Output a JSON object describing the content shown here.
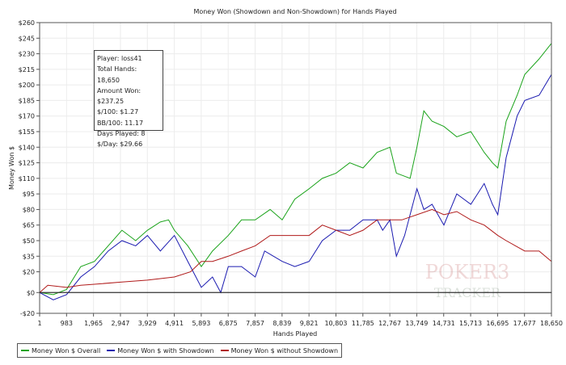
{
  "chart_data": {
    "type": "line",
    "title": "Money Won (Showdown and Non-Showdown) for Hands Played",
    "xlabel": "Hands Played",
    "ylabel": "Money Won $",
    "xlim": [
      1,
      18650
    ],
    "ylim": [
      -20,
      260
    ],
    "x_ticks": [
      "1",
      "983",
      "1,965",
      "2,947",
      "3,929",
      "4,911",
      "5,893",
      "6,875",
      "7,857",
      "8,839",
      "9,821",
      "10,803",
      "11,785",
      "12,767",
      "13,749",
      "14,731",
      "15,713",
      "16,695",
      "17,677",
      "18,650"
    ],
    "y_ticks": [
      {
        "v": -20,
        "label": "-$20"
      },
      {
        "v": 0,
        "label": "$0"
      },
      {
        "v": 20,
        "label": "$20"
      },
      {
        "v": 35,
        "label": "$35"
      },
      {
        "v": 50,
        "label": "$50"
      },
      {
        "v": 65,
        "label": "$65"
      },
      {
        "v": 80,
        "label": "$80"
      },
      {
        "v": 95,
        "label": "$95"
      },
      {
        "v": 110,
        "label": "$110"
      },
      {
        "v": 125,
        "label": "$125"
      },
      {
        "v": 140,
        "label": "$140"
      },
      {
        "v": 155,
        "label": "$155"
      },
      {
        "v": 170,
        "label": "$170"
      },
      {
        "v": 185,
        "label": "$185"
      },
      {
        "v": 200,
        "label": "$200"
      },
      {
        "v": 215,
        "label": "$215"
      },
      {
        "v": 230,
        "label": "$230"
      },
      {
        "v": 245,
        "label": "$245"
      },
      {
        "v": 260,
        "label": "$260"
      }
    ],
    "grid": true,
    "legend_position": "bottom-left",
    "series": [
      {
        "name": "Money Won $ Overall",
        "color": "#1aa31a",
        "points": [
          [
            1,
            0
          ],
          [
            500,
            -2
          ],
          [
            983,
            3
          ],
          [
            1500,
            25
          ],
          [
            2000,
            30
          ],
          [
            2500,
            45
          ],
          [
            3000,
            60
          ],
          [
            3500,
            50
          ],
          [
            3929,
            60
          ],
          [
            4400,
            68
          ],
          [
            4700,
            70
          ],
          [
            4911,
            60
          ],
          [
            5400,
            45
          ],
          [
            5893,
            25
          ],
          [
            6300,
            40
          ],
          [
            6875,
            55
          ],
          [
            7357,
            70
          ],
          [
            7857,
            70
          ],
          [
            8400,
            80
          ],
          [
            8839,
            70
          ],
          [
            9300,
            90
          ],
          [
            9821,
            100
          ],
          [
            10300,
            110
          ],
          [
            10803,
            115
          ],
          [
            11300,
            125
          ],
          [
            11785,
            120
          ],
          [
            12300,
            135
          ],
          [
            12767,
            140
          ],
          [
            13000,
            115
          ],
          [
            13500,
            110
          ],
          [
            13749,
            140
          ],
          [
            14000,
            175
          ],
          [
            14300,
            165
          ],
          [
            14731,
            160
          ],
          [
            15200,
            150
          ],
          [
            15713,
            155
          ],
          [
            16200,
            135
          ],
          [
            16500,
            125
          ],
          [
            16695,
            120
          ],
          [
            17000,
            165
          ],
          [
            17400,
            190
          ],
          [
            17677,
            210
          ],
          [
            18200,
            225
          ],
          [
            18650,
            240
          ]
        ]
      },
      {
        "name": "Money Won $ with Showdown",
        "color": "#1a1ab0",
        "points": [
          [
            1,
            0
          ],
          [
            500,
            -7
          ],
          [
            983,
            -2
          ],
          [
            1500,
            15
          ],
          [
            2000,
            25
          ],
          [
            2500,
            40
          ],
          [
            3000,
            50
          ],
          [
            3500,
            45
          ],
          [
            3929,
            55
          ],
          [
            4400,
            40
          ],
          [
            4911,
            55
          ],
          [
            5400,
            30
          ],
          [
            5893,
            5
          ],
          [
            6300,
            15
          ],
          [
            6600,
            0
          ],
          [
            6875,
            25
          ],
          [
            7357,
            25
          ],
          [
            7857,
            15
          ],
          [
            8200,
            40
          ],
          [
            8839,
            30
          ],
          [
            9300,
            25
          ],
          [
            9821,
            30
          ],
          [
            10300,
            50
          ],
          [
            10803,
            60
          ],
          [
            11300,
            60
          ],
          [
            11785,
            70
          ],
          [
            12300,
            70
          ],
          [
            12500,
            60
          ],
          [
            12767,
            70
          ],
          [
            13000,
            35
          ],
          [
            13300,
            55
          ],
          [
            13749,
            100
          ],
          [
            14000,
            80
          ],
          [
            14300,
            85
          ],
          [
            14731,
            65
          ],
          [
            15200,
            95
          ],
          [
            15713,
            85
          ],
          [
            16200,
            105
          ],
          [
            16500,
            85
          ],
          [
            16695,
            75
          ],
          [
            17000,
            130
          ],
          [
            17400,
            170
          ],
          [
            17677,
            185
          ],
          [
            18200,
            190
          ],
          [
            18650,
            210
          ]
        ]
      },
      {
        "name": "Money Won $ without Showdown",
        "color": "#b01a1a",
        "points": [
          [
            1,
            0
          ],
          [
            300,
            7
          ],
          [
            983,
            5
          ],
          [
            1500,
            7
          ],
          [
            2000,
            8
          ],
          [
            2947,
            10
          ],
          [
            3929,
            12
          ],
          [
            4911,
            15
          ],
          [
            5500,
            20
          ],
          [
            5893,
            30
          ],
          [
            6300,
            30
          ],
          [
            6875,
            35
          ],
          [
            7357,
            40
          ],
          [
            7857,
            45
          ],
          [
            8400,
            55
          ],
          [
            8839,
            55
          ],
          [
            9821,
            55
          ],
          [
            10300,
            65
          ],
          [
            10803,
            60
          ],
          [
            11300,
            55
          ],
          [
            11785,
            60
          ],
          [
            12300,
            70
          ],
          [
            12767,
            70
          ],
          [
            13200,
            70
          ],
          [
            13749,
            75
          ],
          [
            14300,
            80
          ],
          [
            14731,
            75
          ],
          [
            15200,
            78
          ],
          [
            15713,
            70
          ],
          [
            16200,
            65
          ],
          [
            16695,
            55
          ],
          [
            17000,
            50
          ],
          [
            17677,
            40
          ],
          [
            18200,
            40
          ],
          [
            18650,
            30
          ]
        ]
      }
    ]
  },
  "info_box": {
    "player": "Player: loss41",
    "total_hands": "Total Hands: 18,650",
    "amount_won": "Amount Won: $237.25",
    "per100": "$/100: $1.27",
    "bb100": "BB/100: 11.17",
    "days": "Days Played: 8",
    "per_day": "$/Day: $29.66"
  },
  "watermark": "POKER TRACKER 3"
}
